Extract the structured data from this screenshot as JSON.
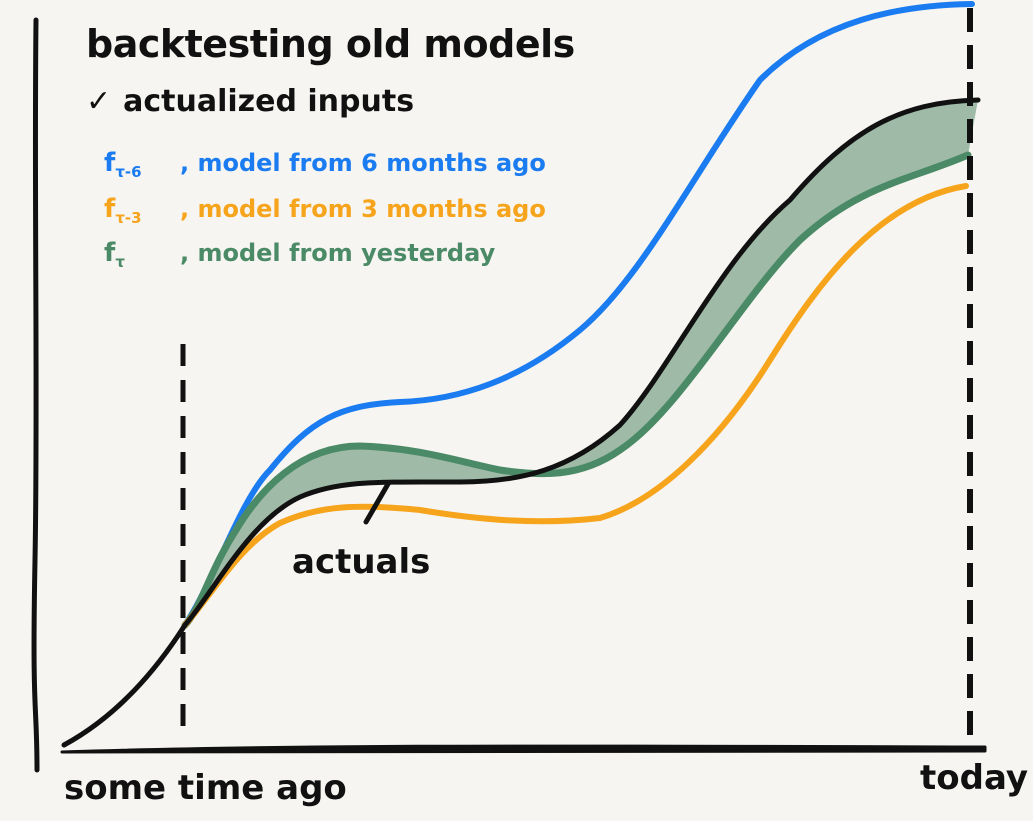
{
  "title": "backtesting old models",
  "check": {
    "mark": "✓",
    "text": "actualized inputs"
  },
  "legend": [
    {
      "symbol": "f",
      "subscript": "τ-6",
      "text": ", model from 6 months ago",
      "color": "#1a7cf0"
    },
    {
      "symbol": "f",
      "subscript": "τ-3",
      "text": ", model from 3 months ago",
      "color": "#f7a41d"
    },
    {
      "symbol": "f",
      "subscript": "τ",
      "text": ", model from yesterday",
      "color": "#4b8a66"
    }
  ],
  "annotation": "actuals",
  "x_axis": {
    "left_label": "some time ago",
    "right_label": "today"
  },
  "colors": {
    "background": "#f6f5f1",
    "actuals": "#111111",
    "band_fill": "#9fbba8"
  }
}
